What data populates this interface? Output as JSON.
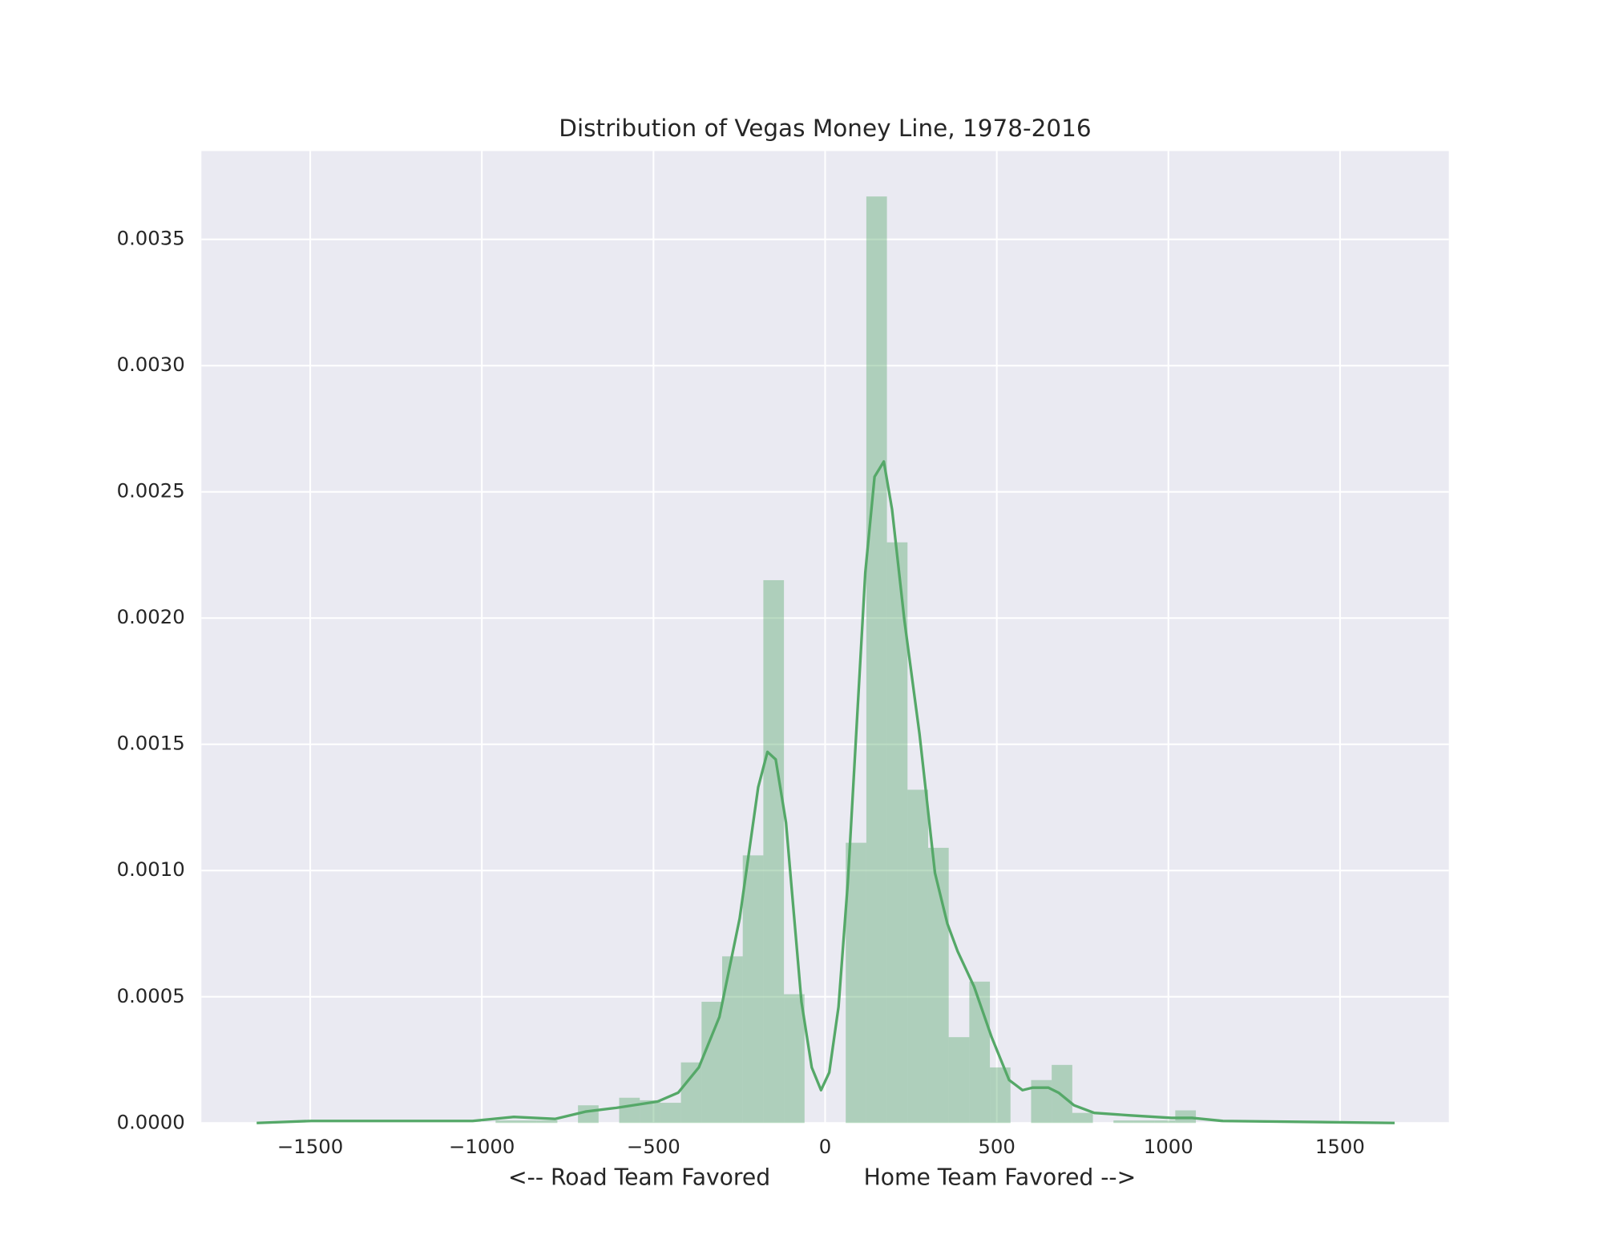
{
  "chart_data": {
    "type": "histogram",
    "title": "Distribution of Vegas Money Line, 1978-2016",
    "xlabel": "<-- Road Team Favored             Home Team Favored -->",
    "bins": [
      -1680,
      -1620,
      -1560,
      -1500,
      -1440,
      -1380,
      -1320,
      -1260,
      -1200,
      -1140,
      -1080,
      -1020,
      -960,
      -900,
      -840,
      -780,
      -720,
      -660,
      -600,
      -540,
      -480,
      -420,
      -360,
      -300,
      -240,
      -180,
      -120,
      -60,
      0,
      60,
      120,
      180,
      240,
      300,
      360,
      420,
      480,
      540,
      600,
      660,
      720,
      780,
      840,
      900,
      960,
      1020,
      1080,
      1140,
      1200,
      1260,
      1320,
      1380,
      1440,
      1500,
      1560,
      1620,
      1680
    ],
    "counts": [
      0,
      0,
      0,
      0,
      0,
      0,
      0,
      0,
      0,
      0,
      0,
      0,
      1e-05,
      1e-05,
      1e-05,
      0,
      7e-05,
      0,
      0.0001,
      9e-05,
      8e-05,
      0.00024,
      0.00048,
      0.00066,
      0.00106,
      0.00215,
      0.00051,
      0,
      0,
      0.00111,
      0.00367,
      0.0023,
      0.00132,
      0.00109,
      0.00034,
      0.00056,
      0.00022,
      0,
      0.00017,
      0.00023,
      4e-05,
      0,
      1e-05,
      1e-05,
      1e-05,
      5e-05,
      0,
      0,
      0,
      0,
      0,
      0,
      0,
      0,
      0,
      0
    ],
    "color": "#55a868",
    "kde": {
      "x": [
        -1656,
        -1497,
        -1027,
        -907,
        -787,
        -698,
        -608,
        -488,
        -428,
        -368,
        -308,
        -249,
        -195,
        -168,
        -144,
        -114,
        -69,
        -39,
        -12,
        12,
        39,
        66,
        117,
        144,
        171,
        195,
        231,
        275,
        320,
        356,
        386,
        434,
        485,
        536,
        575,
        605,
        650,
        680,
        725,
        784,
        889,
        1009,
        1069,
        1159,
        1659
      ],
      "values": [
        0,
        8e-06,
        8e-06,
        2.4e-05,
        1.6e-05,
        4.5e-05,
        6e-05,
        8.5e-05,
        0.00012,
        0.00022,
        0.00042,
        0.00081,
        0.00133,
        0.00147,
        0.00144,
        0.00119,
        0.00048,
        0.00022,
        0.00013,
        0.0002,
        0.00046,
        0.00095,
        0.00218,
        0.00256,
        0.00262,
        0.00243,
        0.00199,
        0.00154,
        0.00099,
        0.00079,
        0.00068,
        0.00054,
        0.00034,
        0.00017,
        0.00013,
        0.00014,
        0.00014,
        0.00012,
        7e-05,
        4e-05,
        3e-05,
        2e-05,
        2e-05,
        8e-06,
        0
      ]
    },
    "xlim": [
      -1817,
      1817
    ],
    "ylim": [
      0,
      0.00385
    ],
    "xticks": [
      {
        "value": -1500,
        "label": "−1500"
      },
      {
        "value": -1000,
        "label": "−1000"
      },
      {
        "value": -500,
        "label": "−500"
      },
      0,
      500,
      1000,
      1500
    ],
    "yticks": [
      {
        "value": 0,
        "label": "0.0000"
      },
      {
        "value": 0.0005,
        "label": "0.0005"
      },
      {
        "value": 0.001,
        "label": "0.0010"
      },
      {
        "value": 0.0015,
        "label": "0.0015"
      },
      {
        "value": 0.002,
        "label": "0.0020"
      },
      {
        "value": 0.0025,
        "label": "0.0025"
      },
      {
        "value": 0.003,
        "label": "0.0030"
      },
      {
        "value": 0.0035,
        "label": "0.0035"
      }
    ],
    "grid": true
  }
}
